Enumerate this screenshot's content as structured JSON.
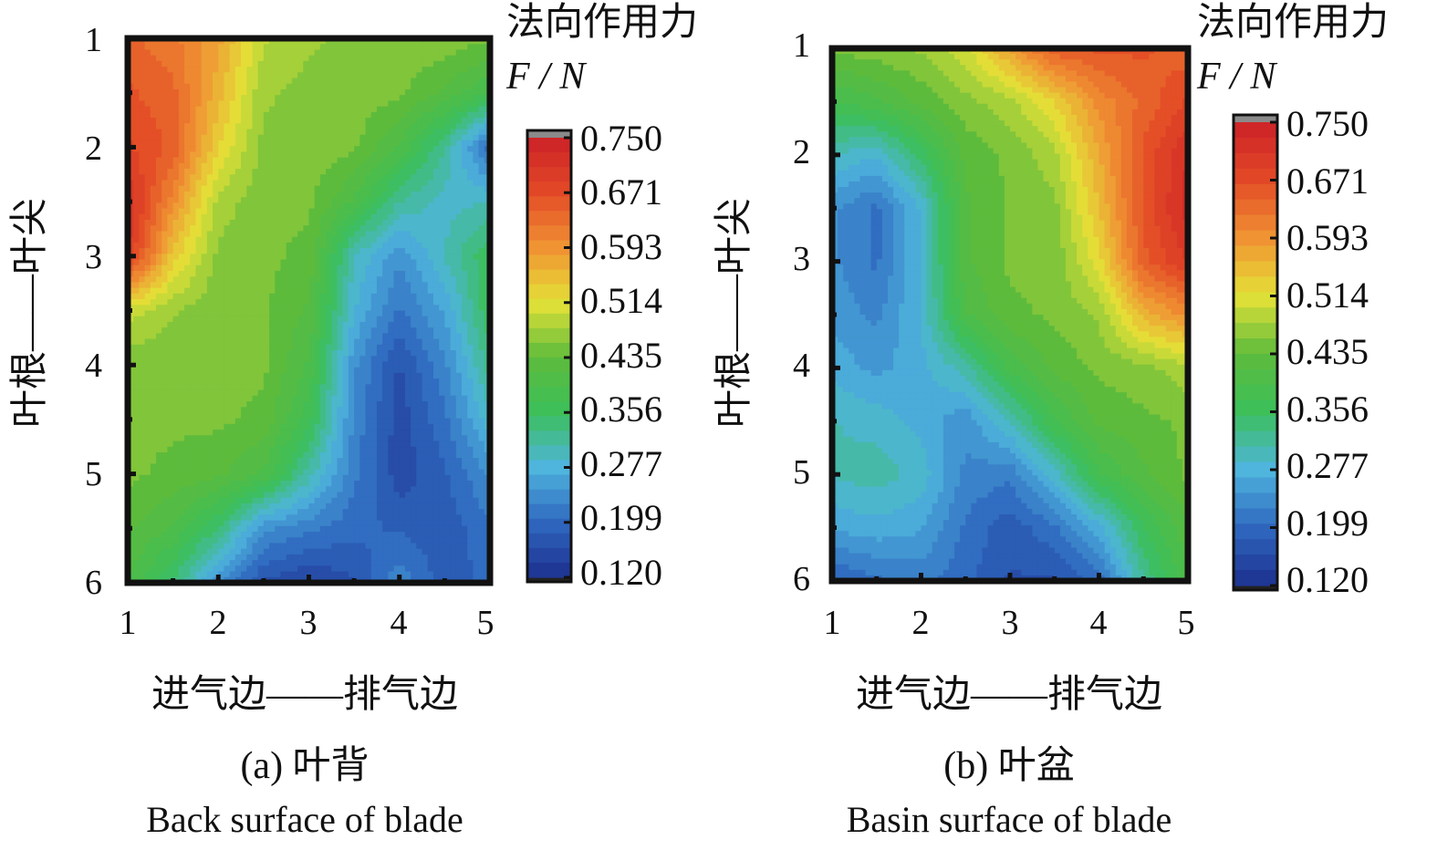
{
  "chart_data": [
    {
      "type": "heatmap",
      "panel_label": "(a) 叶背",
      "subtitle": "Back surface of blade",
      "xlabel": "进气边——排气边",
      "ylabel": "叶根——叶尖",
      "colorbar_title": "法向作用力",
      "colorbar_unit": "F / N",
      "x_ticks": [
        "1",
        "2",
        "3",
        "4",
        "5"
      ],
      "y_ticks": [
        "1",
        "2",
        "3",
        "4",
        "5",
        "6"
      ],
      "xlim": [
        1,
        5
      ],
      "ylim": [
        1,
        6
      ],
      "y_direction": "top-to-bottom",
      "colorbar_ticks": [
        "0.750",
        "0.671",
        "0.593",
        "0.514",
        "0.435",
        "0.356",
        "0.277",
        "0.199",
        "0.120"
      ],
      "zlim": [
        0.12,
        0.75
      ],
      "x": [
        1,
        1.5,
        2,
        2.5,
        3,
        3.5,
        4,
        4.5,
        5
      ],
      "y": [
        1,
        1.5,
        2,
        2.5,
        3,
        3.5,
        4,
        4.5,
        5,
        5.5,
        6
      ],
      "z": [
        [
          0.64,
          0.62,
          0.58,
          0.49,
          0.47,
          0.46,
          0.46,
          0.46,
          0.45
        ],
        [
          0.66,
          0.64,
          0.56,
          0.47,
          0.46,
          0.46,
          0.45,
          0.42,
          0.38
        ],
        [
          0.68,
          0.65,
          0.53,
          0.46,
          0.46,
          0.45,
          0.4,
          0.32,
          0.2
        ],
        [
          0.72,
          0.6,
          0.48,
          0.45,
          0.45,
          0.4,
          0.32,
          0.29,
          0.3
        ],
        [
          0.7,
          0.54,
          0.46,
          0.45,
          0.44,
          0.3,
          0.24,
          0.3,
          0.36
        ],
        [
          0.5,
          0.47,
          0.45,
          0.45,
          0.42,
          0.28,
          0.21,
          0.26,
          0.36
        ],
        [
          0.45,
          0.45,
          0.45,
          0.45,
          0.4,
          0.24,
          0.17,
          0.23,
          0.33
        ],
        [
          0.45,
          0.45,
          0.45,
          0.44,
          0.37,
          0.23,
          0.16,
          0.21,
          0.29
        ],
        [
          0.45,
          0.44,
          0.43,
          0.4,
          0.31,
          0.22,
          0.16,
          0.19,
          0.24
        ],
        [
          0.43,
          0.4,
          0.34,
          0.24,
          0.22,
          0.2,
          0.19,
          0.18,
          0.21
        ],
        [
          0.4,
          0.34,
          0.24,
          0.17,
          0.15,
          0.17,
          0.23,
          0.18,
          0.2
        ]
      ]
    },
    {
      "type": "heatmap",
      "panel_label": "(b) 叶盆",
      "subtitle": "Basin surface of blade",
      "xlabel": "进气边——排气边",
      "ylabel": "叶根——叶尖",
      "colorbar_title": "法向作用力",
      "colorbar_unit": "F / N",
      "x_ticks": [
        "1",
        "2",
        "3",
        "4",
        "5"
      ],
      "y_ticks": [
        "1",
        "2",
        "3",
        "4",
        "5",
        "6"
      ],
      "xlim": [
        1,
        5
      ],
      "ylim": [
        1,
        6
      ],
      "y_direction": "top-to-bottom",
      "colorbar_ticks": [
        "0.750",
        "0.671",
        "0.593",
        "0.514",
        "0.435",
        "0.356",
        "0.277",
        "0.199",
        "0.120"
      ],
      "zlim": [
        0.12,
        0.75
      ],
      "x": [
        1,
        1.5,
        2,
        2.5,
        3,
        3.5,
        4,
        4.5,
        5
      ],
      "y": [
        1,
        1.5,
        2,
        2.5,
        3,
        3.5,
        4,
        4.5,
        5,
        5.5,
        6
      ],
      "z": [
        [
          0.45,
          0.46,
          0.47,
          0.5,
          0.58,
          0.65,
          0.66,
          0.66,
          0.64
        ],
        [
          0.38,
          0.4,
          0.43,
          0.46,
          0.48,
          0.53,
          0.6,
          0.64,
          0.68
        ],
        [
          0.3,
          0.28,
          0.35,
          0.43,
          0.45,
          0.48,
          0.57,
          0.66,
          0.72
        ],
        [
          0.24,
          0.21,
          0.28,
          0.42,
          0.45,
          0.46,
          0.55,
          0.66,
          0.73
        ],
        [
          0.24,
          0.21,
          0.28,
          0.42,
          0.45,
          0.45,
          0.52,
          0.65,
          0.7
        ],
        [
          0.25,
          0.23,
          0.28,
          0.4,
          0.44,
          0.45,
          0.47,
          0.56,
          0.6
        ],
        [
          0.27,
          0.25,
          0.27,
          0.31,
          0.39,
          0.43,
          0.45,
          0.46,
          0.48
        ],
        [
          0.3,
          0.29,
          0.27,
          0.24,
          0.3,
          0.38,
          0.43,
          0.44,
          0.45
        ],
        [
          0.3,
          0.31,
          0.29,
          0.23,
          0.22,
          0.29,
          0.38,
          0.42,
          0.45
        ],
        [
          0.26,
          0.27,
          0.26,
          0.21,
          0.18,
          0.21,
          0.27,
          0.36,
          0.42
        ],
        [
          0.19,
          0.21,
          0.22,
          0.2,
          0.17,
          0.17,
          0.2,
          0.32,
          0.4
        ]
      ]
    }
  ],
  "colors": {
    "stops": [
      "#1d2f8e",
      "#2f68bf",
      "#4fb5dd",
      "#3cbf5a",
      "#5dbb3c",
      "#e4e237",
      "#f09333",
      "#e34a26",
      "#cc2128"
    ],
    "frame": "#111111",
    "cb_top_cap": "#8a8a8a",
    "cb_bottom_cap": "#222222"
  }
}
